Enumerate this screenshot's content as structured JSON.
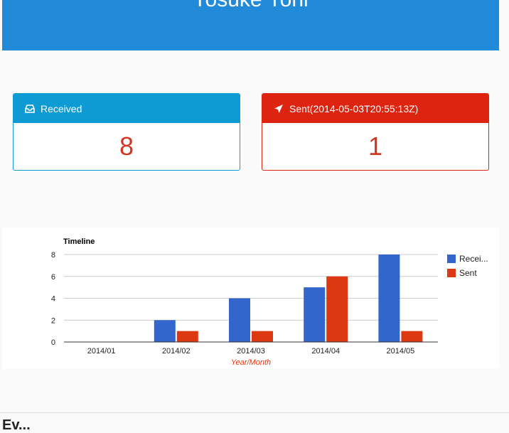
{
  "header": {
    "title": "Yosuke Yoni"
  },
  "panels": {
    "received": {
      "label": "Received",
      "count": "8"
    },
    "sent": {
      "label": "Sent(2014-05-03T20:55:13Z)",
      "count": "1"
    }
  },
  "colors": {
    "header": "#218ad9",
    "received": "#0e9ad3",
    "sent": "#dd2410",
    "series_received": "#3366cc",
    "series_sent": "#dc3912"
  },
  "icons": {
    "received": "inbox-icon",
    "sent": "paper-plane-icon"
  },
  "chart_data": {
    "type": "bar",
    "title": "Timeline",
    "xlabel": "Year/Month",
    "ylabel": "",
    "categories": [
      "2014/01",
      "2014/02",
      "2014/03",
      "2014/04",
      "2014/05"
    ],
    "series": [
      {
        "name": "Recei...",
        "values": [
          0,
          2,
          4,
          5,
          8
        ]
      },
      {
        "name": "Sent",
        "values": [
          0,
          1,
          1,
          6,
          1
        ]
      }
    ],
    "ylim": [
      0,
      8
    ],
    "yticks": [
      0,
      2,
      4,
      6,
      8
    ],
    "grid": true,
    "legend": "right"
  },
  "footer": {
    "text": "Ev..."
  }
}
